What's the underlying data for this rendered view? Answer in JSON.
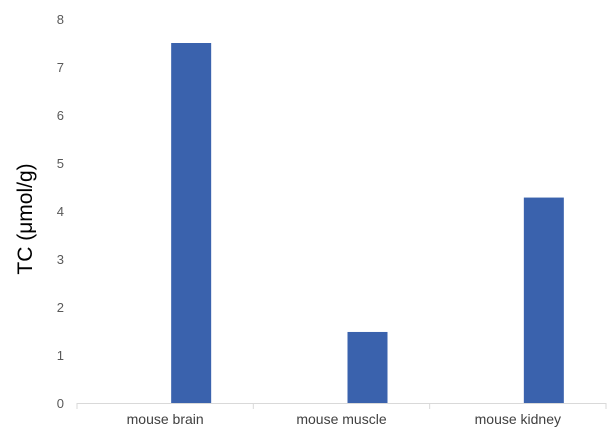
{
  "chart_data": {
    "type": "bar",
    "title": "",
    "xlabel": "",
    "ylabel": "TC (μmol/g)",
    "categories": [
      "mouse brain",
      "mouse muscle",
      "mouse kidney"
    ],
    "values": [
      7.5,
      1.48,
      4.28
    ],
    "ylim": [
      0,
      8
    ],
    "yticks": [
      0,
      1,
      2,
      3,
      4,
      5,
      6,
      7,
      8
    ],
    "grid": false,
    "legend": "none",
    "bar_color": "#3A62AD",
    "axis_color": "#D9D9D9"
  }
}
